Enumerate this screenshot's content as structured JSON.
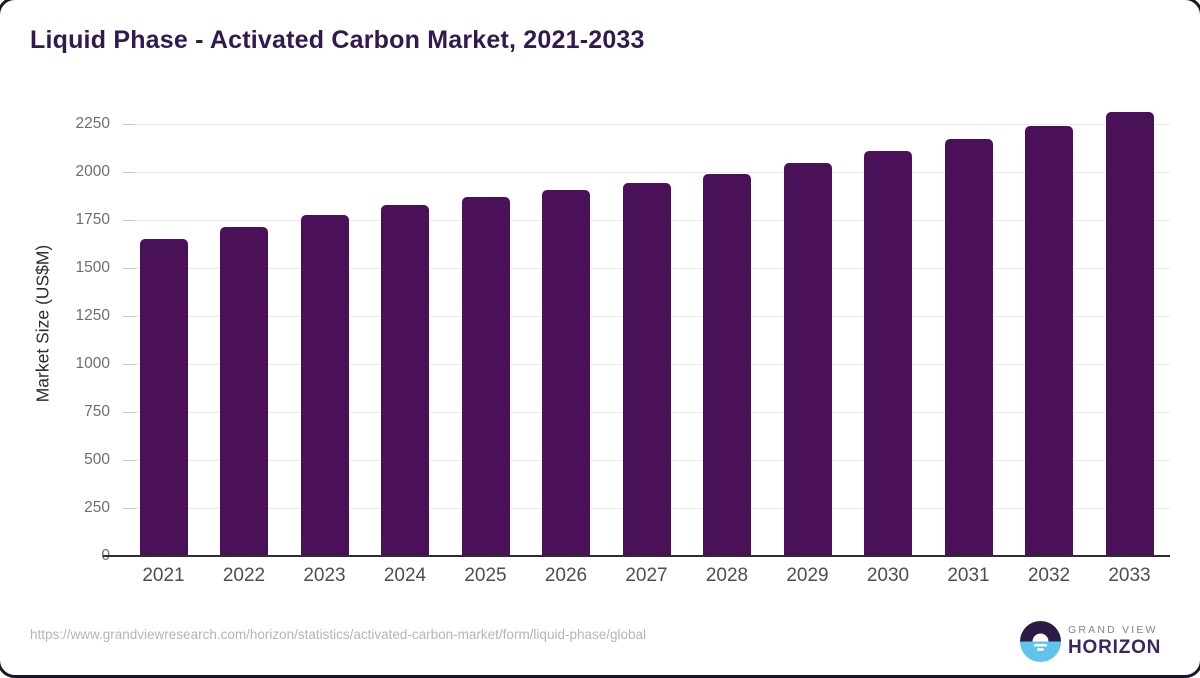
{
  "title": "Liquid Phase - Activated Carbon Market, 2021-2033",
  "chart_data": {
    "type": "bar",
    "categories": [
      "2021",
      "2022",
      "2023",
      "2024",
      "2025",
      "2026",
      "2027",
      "2028",
      "2029",
      "2030",
      "2031",
      "2032",
      "2033"
    ],
    "values": [
      1650,
      1712,
      1776,
      1828,
      1869,
      1906,
      1944,
      1991,
      2049,
      2108,
      2171,
      2240,
      2313
    ],
    "title": "Liquid Phase - Activated Carbon Market, 2021-2033",
    "xlabel": "",
    "ylabel": "Market Size (US$M)",
    "ylim": [
      0,
      2250
    ],
    "ytick_step": 250,
    "yticks": [
      0,
      250,
      500,
      750,
      1000,
      1250,
      1500,
      1750,
      2000,
      2250
    ],
    "grid": true,
    "legend": "none",
    "bar_color": "#4a1158"
  },
  "footer": {
    "source_url": "https://www.grandviewresearch.com/horizon/statistics/activated-carbon-market/form/liquid-phase/global"
  },
  "logo": {
    "icon": "horizon-sunrise-icon",
    "line1": "GRAND VIEW",
    "line2": "HORIZON",
    "colors": {
      "circle_top": "#2e1b45",
      "circle_bottom": "#5fc3ec",
      "glyph": "#ffffff",
      "wordmark": "#3a2760",
      "tagline": "#84808f"
    }
  },
  "colors": {
    "title": "#321a4e",
    "bar": "#4a1158",
    "gridline": "#ebebeb",
    "baseline": "#2d2d2d",
    "x_labels": "#4e4e4e",
    "y_labels": "#6e6e6e",
    "url": "#b5b5b5"
  }
}
